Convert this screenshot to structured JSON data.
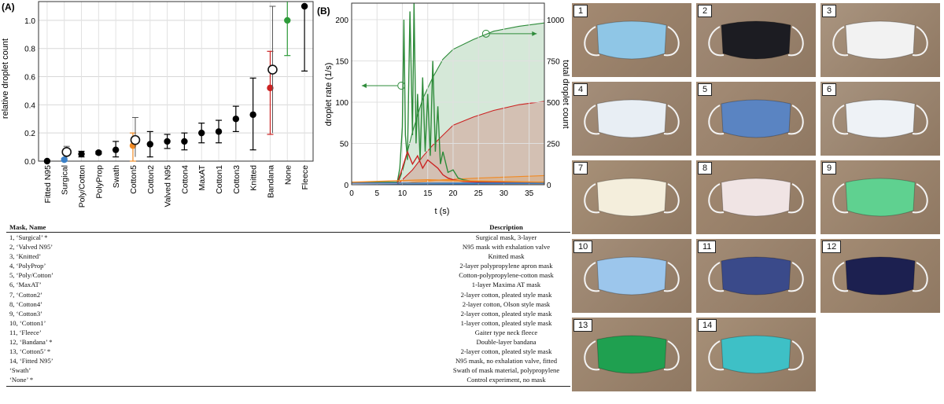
{
  "panel_a": {
    "label": "(A)",
    "ylabel": "relative droplet count",
    "yticks": [
      "0.0",
      "0.2",
      "0.4",
      "0.6",
      "0.8",
      "1.0"
    ]
  },
  "panel_b": {
    "label": "(B)",
    "ylabel_left": "droplet rate (1/s)",
    "ylabel_right": "total droplet count",
    "xlabel": "t (s)",
    "xticks": [
      "0",
      "5",
      "10",
      "15",
      "20",
      "25",
      "30",
      "35"
    ],
    "yticks_left": [
      "0",
      "50",
      "100",
      "150",
      "200"
    ],
    "yticks_right": [
      "0",
      "250",
      "500",
      "750",
      "1000"
    ]
  },
  "chart_data": [
    {
      "type": "scatter",
      "title": "(A)",
      "xlabel": "",
      "ylabel": "relative droplet count",
      "ylim": [
        0,
        1.1
      ],
      "categories": [
        "Fitted N95",
        "Surgical",
        "Poly/Cotton",
        "PolyProp",
        "Swath",
        "Cotton5",
        "Cotton2",
        "Valved N95",
        "Cotton4",
        "MaxAT",
        "Cotton1",
        "Cotton3",
        "Knitted",
        "Bandana",
        "None",
        "Fleece"
      ],
      "series": [
        {
          "values": [
            0.0,
            0.01,
            0.05,
            0.06,
            0.08,
            0.11,
            0.12,
            0.14,
            0.14,
            0.2,
            0.21,
            0.3,
            0.33,
            0.52,
            1.0,
            1.1
          ],
          "err_low": [
            0.0,
            0.01,
            0.02,
            0.01,
            0.05,
            0.11,
            0.09,
            0.05,
            0.06,
            0.07,
            0.08,
            0.09,
            0.25,
            0.33,
            0.25,
            0.46
          ],
          "err_high": [
            0.0,
            0.01,
            0.02,
            0.01,
            0.06,
            0.09,
            0.09,
            0.05,
            0.06,
            0.07,
            0.08,
            0.09,
            0.26,
            0.26,
            0.3,
            0.0
          ],
          "colors": [
            "#000000",
            "#3a80c8",
            "#000000",
            "#000000",
            "#000000",
            "#f08a24",
            "#000000",
            "#000000",
            "#000000",
            "#000000",
            "#000000",
            "#000000",
            "#000000",
            "#cc2222",
            "#2e9b3a",
            "#000000"
          ]
        },
        {
          "open_markers": [
            {
              "category": "Surgical",
              "value": 0.065,
              "err_low": 0.04,
              "err_high": 0.04
            },
            {
              "category": "Cotton5",
              "value": 0.15,
              "err_low": 0.12,
              "err_high": 0.16
            },
            {
              "category": "Bandana",
              "value": 0.65,
              "err_low": 0.45,
              "err_high": 0.45
            }
          ]
        }
      ]
    },
    {
      "type": "line",
      "title": "(B)",
      "xlabel": "t (s)",
      "ylabel": "droplet rate (1/s)",
      "ylabel_right": "total droplet count",
      "xlim": [
        0,
        38
      ],
      "ylim": [
        0,
        220
      ],
      "ylim_right": [
        0,
        1100
      ],
      "series": [
        {
          "color": "#2e8b3a",
          "axis": "left",
          "x": [
            0,
            9,
            9.5,
            10,
            10.3,
            10.6,
            11,
            11.5,
            12,
            12.3,
            12.7,
            13,
            13.5,
            14,
            14.5,
            15,
            15.5,
            16,
            16.5,
            17,
            17.5,
            18,
            19,
            20,
            21,
            22,
            24,
            27,
            30,
            38
          ],
          "y": [
            3,
            3,
            20,
            70,
            200,
            60,
            30,
            210,
            60,
            225,
            50,
            110,
            30,
            130,
            40,
            110,
            35,
            150,
            40,
            95,
            25,
            40,
            15,
            18,
            8,
            6,
            4,
            3,
            3,
            3
          ]
        },
        {
          "color": "#cc2222",
          "axis": "left",
          "x": [
            0,
            9,
            10,
            11,
            12,
            13,
            14,
            15,
            16,
            17,
            18,
            19,
            20,
            22,
            25,
            38
          ],
          "y": [
            2,
            2,
            20,
            40,
            25,
            35,
            20,
            30,
            25,
            20,
            12,
            8,
            6,
            4,
            3,
            2
          ]
        },
        {
          "color": "#3a80c8",
          "axis": "left",
          "x": [
            0,
            38
          ],
          "y": [
            2,
            2
          ]
        },
        {
          "color": "#f08a24",
          "axis": "left",
          "x": [
            0,
            10,
            15,
            20,
            38
          ],
          "y": [
            3,
            5,
            6,
            5,
            3
          ]
        },
        {
          "color": "#2e8b3a",
          "axis": "right",
          "fill": true,
          "x": [
            0,
            9,
            10,
            12,
            14,
            16,
            18,
            20,
            24,
            28,
            33,
            38
          ],
          "y": [
            0,
            0,
            80,
            320,
            520,
            650,
            760,
            820,
            880,
            930,
            960,
            980
          ]
        },
        {
          "color": "#cc2222",
          "axis": "right",
          "fill": true,
          "x": [
            0,
            9,
            10,
            12,
            14,
            16,
            18,
            20,
            24,
            28,
            33,
            38
          ],
          "y": [
            0,
            0,
            30,
            90,
            170,
            240,
            300,
            360,
            410,
            450,
            485,
            505
          ]
        },
        {
          "color": "#f08a24",
          "axis": "right",
          "fill": true,
          "x": [
            0,
            9,
            12,
            18,
            25,
            38
          ],
          "y": [
            0,
            0,
            15,
            30,
            40,
            55
          ]
        },
        {
          "color": "#3a80c8",
          "axis": "right",
          "fill": true,
          "x": [
            0,
            38
          ],
          "y": [
            0,
            8
          ]
        }
      ]
    }
  ],
  "table": {
    "headers": [
      "Mask, Name",
      "Description"
    ],
    "rows": [
      [
        "1, ‘Surgical’ *",
        "Surgical mask, 3-layer"
      ],
      [
        "2, ‘Valved N95’",
        "N95 mask with exhalation valve"
      ],
      [
        "3, ‘Knitted’",
        "Knitted mask"
      ],
      [
        "4, ‘PolyProp’",
        "2-layer polypropylene apron mask"
      ],
      [
        "5, ‘Poly/Cotton’",
        "Cotton-polypropylene-cotton mask"
      ],
      [
        "6, ‘MaxAT’",
        "1-layer Maxima AT mask"
      ],
      [
        "7, ‘Cotton2’",
        "2-layer cotton, pleated style mask"
      ],
      [
        "8, ‘Cotton4’",
        "2-layer cotton, Olson style mask"
      ],
      [
        "9, ‘Cotton3’",
        "2-layer cotton, pleated style mask"
      ],
      [
        "10, ‘Cotton1’",
        "1-layer cotton, pleated style mask"
      ],
      [
        "11, ‘Fleece’",
        "Gaiter type neck fleece"
      ],
      [
        "12, ‘Bandana’ *",
        "Double-layer bandana"
      ],
      [
        "13, ‘Cotton5’ *",
        "2-layer cotton, pleated style mask"
      ],
      [
        "14, ‘Fitted N95’",
        "N95 mask, no exhalation valve, fitted"
      ],
      [
        "‘Swath’",
        "Swath of mask material, polypropylene"
      ],
      [
        "‘None’ *",
        "Control experiment, no mask"
      ]
    ]
  },
  "photos": [
    {
      "num": "1",
      "bg": "#a48a72",
      "mask": "#8fc6e6"
    },
    {
      "num": "2",
      "bg": "#a28b77",
      "mask": "#1c1c22"
    },
    {
      "num": "3",
      "bg": "#aa9580",
      "mask": "#f2f2f2"
    },
    {
      "num": "4",
      "bg": "#a58f7b",
      "mask": "#e8eef4"
    },
    {
      "num": "5",
      "bg": "#a48c76",
      "mask": "#5a84c2"
    },
    {
      "num": "6",
      "bg": "#a89480",
      "mask": "#eef2f6"
    },
    {
      "num": "7",
      "bg": "#a89178",
      "mask": "#f4eedc"
    },
    {
      "num": "8",
      "bg": "#a38a72",
      "mask": "#f0e4e4"
    },
    {
      "num": "9",
      "bg": "#a68f78",
      "mask": "#5fd190"
    },
    {
      "num": "10",
      "bg": "#a58f7a",
      "mask": "#9cc6ec"
    },
    {
      "num": "11",
      "bg": "#a38c76",
      "mask": "#3a4a8a"
    },
    {
      "num": "12",
      "bg": "#a48c74",
      "mask": "#1c2050"
    },
    {
      "num": "13",
      "bg": "#a48d76",
      "mask": "#1fa050"
    },
    {
      "num": "14",
      "bg": "#a79078",
      "mask": "#3ec0c6"
    }
  ]
}
